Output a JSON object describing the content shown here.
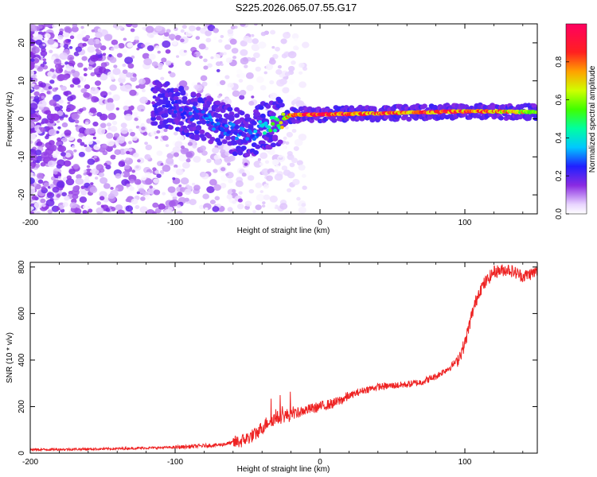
{
  "title": "S225.2026.065.07.55.G17",
  "chart_data": [
    {
      "type": "heatmap",
      "name": "spectrogram",
      "xlabel": "Height of straight line (km)",
      "ylabel": "Frequency (Hz)",
      "xlim": [
        -200,
        150
      ],
      "ylim": [
        -25,
        25
      ],
      "xticks": [
        -200,
        -100,
        0,
        100
      ],
      "yticks": [
        -20,
        -10,
        0,
        10,
        20
      ],
      "colorbar": {
        "label": "Normalized spectral amplitude",
        "range": [
          0.0,
          1.0
        ],
        "ticks": [
          0.0,
          0.2,
          0.4,
          0.6,
          0.8
        ]
      },
      "ridge": {
        "description_points_x": [
          -115,
          -100,
          -80,
          -60,
          -50,
          -40,
          -30,
          -20,
          0,
          50,
          100,
          150
        ],
        "frequency_hz": [
          4,
          3,
          0,
          -3,
          -5,
          -2,
          -1,
          1,
          1.2,
          1.5,
          2,
          1.8
        ],
        "amplitude": [
          0.2,
          0.25,
          0.3,
          0.3,
          0.3,
          0.4,
          0.55,
          0.85,
          0.95,
          0.9,
          0.9,
          0.7
        ]
      }
    },
    {
      "type": "line",
      "name": "snr",
      "xlabel": "Height of straight line (km)",
      "ylabel": "SNR (10 * v/v)",
      "xlim": [
        -200,
        150
      ],
      "ylim": [
        0,
        820
      ],
      "xticks": [
        -200,
        -100,
        0,
        100
      ],
      "yticks": [
        0,
        200,
        400,
        600,
        800
      ],
      "color": "#ee2222",
      "x": [
        -200,
        -150,
        -100,
        -70,
        -55,
        -45,
        -40,
        -35,
        -30,
        -25,
        -20,
        -10,
        0,
        10,
        20,
        30,
        40,
        50,
        60,
        70,
        80,
        90,
        95,
        100,
        105,
        110,
        120,
        130,
        140,
        150
      ],
      "y": [
        15,
        18,
        25,
        35,
        50,
        80,
        110,
        140,
        150,
        160,
        165,
        185,
        200,
        215,
        245,
        270,
        285,
        290,
        295,
        305,
        330,
        370,
        400,
        470,
        600,
        700,
        780,
        790,
        760,
        780
      ]
    }
  ]
}
